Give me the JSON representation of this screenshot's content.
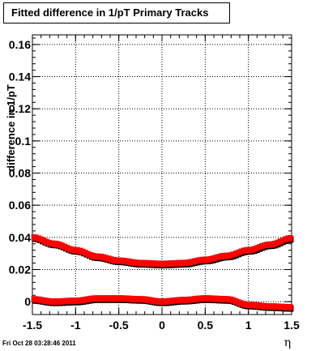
{
  "title": "Fitted difference in 1/pT  Primary Tracks",
  "footer": "Fri Oct 28 03:28:46 2011",
  "chart_data": {
    "type": "scatter",
    "title": "Fitted difference in 1/pT  Primary Tracks",
    "xlabel": "η",
    "ylabel": "difference in 1/pT",
    "xlim": [
      -1.5,
      1.5
    ],
    "ylim": [
      -0.008,
      0.166
    ],
    "grid": true,
    "colors": {
      "primary": "#ff0000",
      "shadow": "#000000"
    },
    "x_ticks": [
      -1.5,
      -1,
      -0.5,
      0,
      0.5,
      1,
      1.5
    ],
    "x_tick_labels": [
      "-1.5",
      "-1",
      "-0.5",
      "0",
      "0.5",
      "1",
      "1.5"
    ],
    "y_ticks": [
      0,
      0.02,
      0.04,
      0.06,
      0.08,
      0.1,
      0.12,
      0.14,
      0.16
    ],
    "y_tick_labels": [
      "0",
      "0.02",
      "0.04",
      "0.06",
      "0.08",
      "0.1",
      "0.12",
      "0.14",
      "0.16"
    ],
    "series": [
      {
        "x": [
          -1.5,
          -1.25,
          -1.0,
          -0.75,
          -0.5,
          -0.25,
          0.0,
          0.25,
          0.5,
          0.75,
          1.0,
          1.25,
          1.5
        ],
        "y": [
          0.04,
          0.036,
          0.032,
          0.028,
          0.0255,
          0.024,
          0.0235,
          0.024,
          0.026,
          0.0285,
          0.032,
          0.0355,
          0.0395
        ]
      },
      {
        "x": [
          -1.5,
          -1.25,
          -1.0,
          -0.75,
          -0.5,
          -0.25,
          0.0,
          0.25,
          0.5,
          0.75,
          1.0,
          1.25,
          1.5
        ],
        "y": [
          0.0015,
          0.0,
          0.0005,
          0.002,
          0.002,
          0.0015,
          0.0,
          0.001,
          0.002,
          0.0015,
          -0.002,
          -0.003,
          -0.0035
        ]
      }
    ]
  }
}
